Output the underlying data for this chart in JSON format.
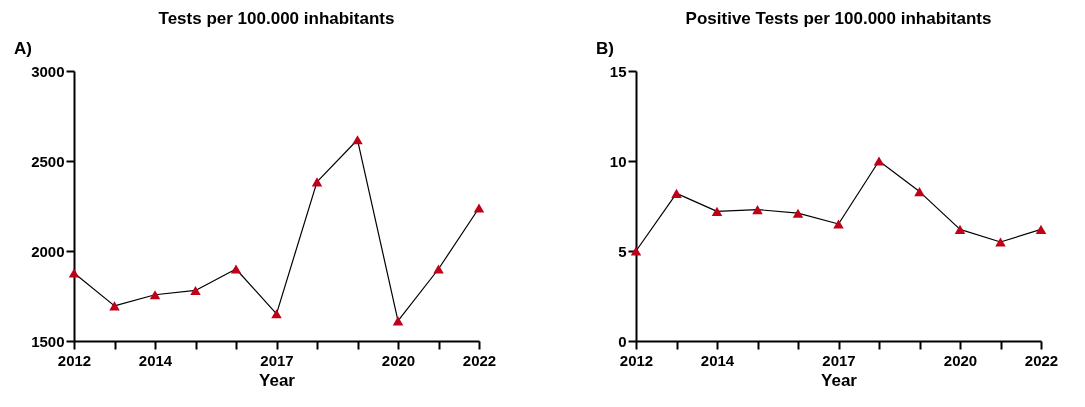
{
  "chart_data": [
    {
      "type": "line",
      "title": "Tests per 100.000 inhabitants",
      "annotations": [
        "A)"
      ],
      "xlabel": "Year",
      "marker": "triangle",
      "x": [
        2012,
        2013,
        2014,
        2015,
        2016,
        2017,
        2018,
        2019,
        2020,
        2021,
        2022
      ],
      "xlim": [
        2012,
        2022
      ],
      "xticks": [
        2012,
        {
          "value": 2013,
          "label": null
        },
        2014,
        {
          "value": 2015,
          "label": null
        },
        {
          "value": 2016,
          "label": null
        },
        2017,
        {
          "value": 2018,
          "label": null
        },
        {
          "value": 2019,
          "label": null
        },
        2020,
        {
          "value": 2021,
          "label": null
        },
        2022
      ],
      "ylim": [
        1500,
        3000
      ],
      "yticks": [
        1500,
        2000,
        2500,
        3000
      ],
      "series": [
        {
          "color": "#c00018",
          "values": [
            1878,
            1695,
            1757,
            1781,
            1900,
            1651,
            2384,
            2618,
            1612,
            1900,
            2239
          ]
        }
      ]
    },
    {
      "type": "line",
      "title": "Positive Tests per 100.000 inhabitants",
      "annotations": [
        "B)"
      ],
      "xlabel": "Year",
      "marker": "triangle",
      "x": [
        2012,
        2013,
        2014,
        2015,
        2016,
        2017,
        2018,
        2019,
        2020,
        2021,
        2022
      ],
      "xlim": [
        2012,
        2022
      ],
      "xticks": [
        2012,
        {
          "value": 2013,
          "label": null
        },
        2014,
        {
          "value": 2015,
          "label": null
        },
        {
          "value": 2016,
          "label": null
        },
        2017,
        {
          "value": 2018,
          "label": null
        },
        {
          "value": 2019,
          "label": null
        },
        2020,
        {
          "value": 2021,
          "label": null
        },
        2022
      ],
      "ylim": [
        0,
        15
      ],
      "yticks": [
        0,
        5,
        10,
        15
      ],
      "series": [
        {
          "color": "#c00018",
          "values": [
            5.0,
            8.2,
            7.2,
            7.3,
            7.1,
            6.5,
            10.0,
            8.3,
            6.2,
            5.5,
            6.2
          ]
        }
      ]
    }
  ]
}
